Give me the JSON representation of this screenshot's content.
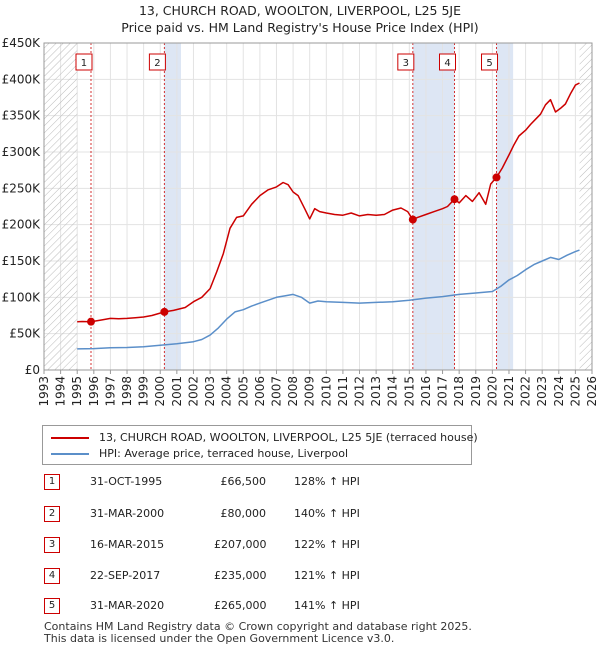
{
  "header": {
    "title_line1": "13, CHURCH ROAD, WOOLTON, LIVERPOOL, L25 5JE",
    "title_line2": "Price paid vs. HM Land Registry's House Price Index (HPI)"
  },
  "colors": {
    "property": "#cc0000",
    "hpi": "#5b8fc9",
    "shade": "#dde6f4",
    "hatch": "#bbbbbb",
    "grid": "#e3e3e3"
  },
  "chart_data": {
    "type": "line",
    "title": "13, CHURCH ROAD, WOOLTON, LIVERPOOL, L25 5JE — Price paid vs. HM Land Registry's House Price Index (HPI)",
    "xlim": [
      1993,
      2026
    ],
    "ylim": [
      0,
      450000
    ],
    "y_ticks": [
      0,
      50000,
      100000,
      150000,
      200000,
      250000,
      300000,
      350000,
      400000,
      450000
    ],
    "y_tick_labels": [
      "£0",
      "£50K",
      "£100K",
      "£150K",
      "£200K",
      "£250K",
      "£300K",
      "£350K",
      "£400K",
      "£450K"
    ],
    "x_ticks": [
      1993,
      1994,
      1995,
      1996,
      1997,
      1998,
      1999,
      2000,
      2001,
      2002,
      2003,
      2004,
      2005,
      2006,
      2007,
      2008,
      2009,
      2010,
      2011,
      2012,
      2013,
      2014,
      2015,
      2016,
      2017,
      2018,
      2019,
      2020,
      2021,
      2022,
      2023,
      2024,
      2025,
      2026
    ],
    "x_tick_labels": [
      "1993",
      "1994",
      "1995",
      "1996",
      "1997",
      "1998",
      "1999",
      "2000",
      "2001",
      "2002",
      "2003",
      "2004",
      "2005",
      "2006",
      "2007",
      "2008",
      "2009",
      "2010",
      "2011",
      "2012",
      "2013",
      "2014",
      "2015",
      "2016",
      "2017",
      "2018",
      "2019",
      "2020",
      "2021",
      "2022",
      "2023",
      "2024",
      "2025",
      "2026"
    ],
    "data_start": 1995.0,
    "data_end": 2025.25,
    "series": [
      {
        "name": "13, CHURCH ROAD, WOOLTON, LIVERPOOL, L25 5JE (terraced house)",
        "color": "#cc0000",
        "x": [
          1995.0,
          1995.3,
          1995.83,
          1996.5,
          1997,
          1997.5,
          1998,
          1998.5,
          1999,
          1999.5,
          2000.25,
          2000.8,
          2001.5,
          2002,
          2002.5,
          2003,
          2003.4,
          2003.8,
          2004.2,
          2004.6,
          2005,
          2005.5,
          2006,
          2006.5,
          2007,
          2007.4,
          2007.7,
          2008,
          2008.3,
          2008.7,
          2009,
          2009.3,
          2009.6,
          2010,
          2010.5,
          2011,
          2011.5,
          2012,
          2012.5,
          2013,
          2013.5,
          2014,
          2014.5,
          2014.9,
          2015.21,
          2015.5,
          2016,
          2016.5,
          2017,
          2017.3,
          2017.72,
          2018,
          2018.4,
          2018.8,
          2019.2,
          2019.6,
          2019.9,
          2020.25,
          2020.6,
          2021,
          2021.3,
          2021.6,
          2022,
          2022.3,
          2022.6,
          2022.9,
          2023.2,
          2023.5,
          2023.8,
          2024.1,
          2024.4,
          2024.7,
          2025.0,
          2025.25
        ],
        "values": [
          66500,
          66800,
          66500,
          69000,
          71000,
          70500,
          71000,
          72000,
          73000,
          75000,
          80000,
          82000,
          86000,
          94000,
          100000,
          112000,
          135000,
          160000,
          195000,
          210000,
          212000,
          228000,
          240000,
          248000,
          252000,
          258000,
          255000,
          245000,
          240000,
          222000,
          208000,
          222000,
          218000,
          216000,
          214000,
          213000,
          216000,
          212000,
          214000,
          213000,
          214000,
          220000,
          223000,
          218000,
          207000,
          210000,
          214000,
          218000,
          222000,
          225000,
          235000,
          230000,
          240000,
          232000,
          244000,
          228000,
          256000,
          265000,
          278000,
          296000,
          310000,
          322000,
          330000,
          338000,
          345000,
          352000,
          365000,
          372000,
          355000,
          360000,
          366000,
          380000,
          392000,
          395000
        ]
      },
      {
        "name": "HPI: Average price, terraced house, Liverpool",
        "color": "#5b8fc9",
        "x": [
          1995.0,
          1996,
          1997,
          1998,
          1999,
          2000,
          2001,
          2002,
          2002.5,
          2003,
          2003.5,
          2004,
          2004.5,
          2005,
          2005.5,
          2006,
          2006.5,
          2007,
          2007.5,
          2008,
          2008.5,
          2009,
          2009.5,
          2010,
          2011,
          2012,
          2013,
          2014,
          2015,
          2016,
          2017,
          2018,
          2019,
          2020,
          2020.5,
          2021,
          2021.5,
          2022,
          2022.5,
          2023,
          2023.5,
          2024,
          2024.5,
          2025.0,
          2025.25
        ],
        "values": [
          29000,
          29500,
          30500,
          31000,
          32000,
          34000,
          36000,
          39000,
          42000,
          48000,
          58000,
          70000,
          80000,
          83000,
          88000,
          92000,
          96000,
          100000,
          102000,
          104000,
          100000,
          92000,
          95000,
          94000,
          93000,
          92000,
          93000,
          94000,
          96000,
          99000,
          101000,
          104000,
          106000,
          108000,
          115000,
          124000,
          130000,
          138000,
          145000,
          150000,
          155000,
          152000,
          158000,
          163000,
          165000
        ]
      }
    ],
    "sales": [
      {
        "label": "1",
        "x": 1995.83,
        "value": 66500
      },
      {
        "label": "2",
        "x": 2000.25,
        "value": 80000
      },
      {
        "label": "3",
        "x": 2015.21,
        "value": 207000
      },
      {
        "label": "4",
        "x": 2017.72,
        "value": 235000
      },
      {
        "label": "5",
        "x": 2020.25,
        "value": 265000
      }
    ],
    "shaded_periods": [
      [
        2000.25,
        2001.25
      ],
      [
        2015.21,
        2017.72
      ],
      [
        2020.25,
        2021.25
      ]
    ]
  },
  "legend": {
    "property_label": "13, CHURCH ROAD, WOOLTON, LIVERPOOL, L25 5JE (terraced house)",
    "hpi_label": "HPI: Average price, terraced house, Liverpool"
  },
  "sales_table": [
    {
      "num": "1",
      "date": "31-OCT-1995",
      "price": "£66,500",
      "hpi": "128% ↑ HPI"
    },
    {
      "num": "2",
      "date": "31-MAR-2000",
      "price": "£80,000",
      "hpi": "140% ↑ HPI"
    },
    {
      "num": "3",
      "date": "16-MAR-2015",
      "price": "£207,000",
      "hpi": "122% ↑ HPI"
    },
    {
      "num": "4",
      "date": "22-SEP-2017",
      "price": "£235,000",
      "hpi": "121% ↑ HPI"
    },
    {
      "num": "5",
      "date": "31-MAR-2020",
      "price": "£265,000",
      "hpi": "141% ↑ HPI"
    }
  ],
  "footer": {
    "line1": "Contains HM Land Registry data © Crown copyright and database right 2025.",
    "line2": "This data is licensed under the Open Government Licence v3.0."
  }
}
